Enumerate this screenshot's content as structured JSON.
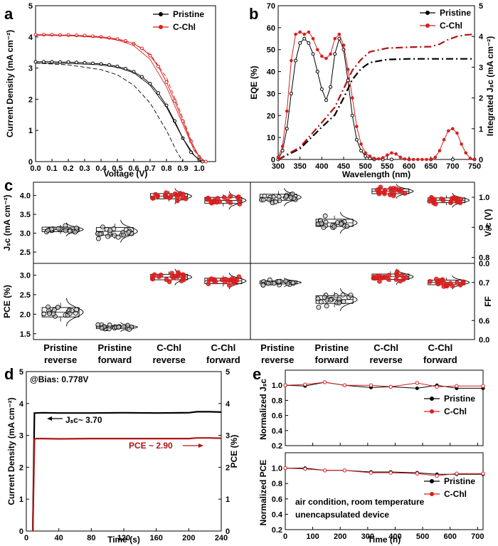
{
  "colors": {
    "pristine": "#000000",
    "cchl": "#d81e1e",
    "cchl_dark": "#b01414"
  },
  "legend": {
    "pristine": "Pristine",
    "cchl": "C-Chl"
  },
  "chart_data": [
    {
      "panel": "a",
      "type": "line",
      "xlabel": "Voltage (V)",
      "ylabel": "Current Density (mA cm⁻²)",
      "xlim": [
        0,
        1.1
      ],
      "ylim": [
        0,
        5
      ],
      "xticks": [
        "0.0",
        "0.1",
        "0.2",
        "0.3",
        "0.4",
        "0.5",
        "0.6",
        "0.7",
        "0.8",
        "0.9",
        "1.0"
      ],
      "yticks": [
        "0",
        "1",
        "2",
        "3",
        "4",
        "5"
      ],
      "series": [
        {
          "name": "Pristine",
          "style": "markers",
          "x": [
            0,
            0.05,
            0.1,
            0.15,
            0.2,
            0.25,
            0.3,
            0.35,
            0.4,
            0.45,
            0.5,
            0.55,
            0.6,
            0.65,
            0.7,
            0.75,
            0.8,
            0.85,
            0.9,
            0.95,
            1.0,
            1.02
          ],
          "y": [
            3.2,
            3.2,
            3.2,
            3.19,
            3.19,
            3.18,
            3.17,
            3.15,
            3.13,
            3.1,
            3.05,
            2.98,
            2.88,
            2.72,
            2.5,
            2.2,
            1.8,
            1.3,
            0.75,
            0.3,
            0.05,
            0.0
          ]
        },
        {
          "name": "C-Chl",
          "style": "markers",
          "x": [
            0,
            0.05,
            0.1,
            0.15,
            0.2,
            0.25,
            0.3,
            0.35,
            0.4,
            0.45,
            0.5,
            0.55,
            0.6,
            0.65,
            0.7,
            0.75,
            0.8,
            0.85,
            0.9,
            0.95,
            1.0,
            1.04
          ],
          "y": [
            4.07,
            4.07,
            4.07,
            4.06,
            4.06,
            4.05,
            4.04,
            4.02,
            4.0,
            3.97,
            3.93,
            3.87,
            3.78,
            3.63,
            3.4,
            3.05,
            2.55,
            1.95,
            1.3,
            0.65,
            0.15,
            0.0
          ]
        },
        {
          "name": "Pristine reverse sweep",
          "style": "solid",
          "x": [
            0,
            0.2,
            0.4,
            0.5,
            0.6,
            0.7,
            0.8,
            0.9,
            0.97,
            1.01
          ],
          "y": [
            3.16,
            3.15,
            3.1,
            3.02,
            2.85,
            2.45,
            1.75,
            0.75,
            0.2,
            0.0
          ]
        },
        {
          "name": "Pristine forward sweep",
          "style": "dashed",
          "x": [
            0,
            0.2,
            0.4,
            0.5,
            0.6,
            0.7,
            0.8,
            0.86,
            0.9
          ],
          "y": [
            3.16,
            3.1,
            2.95,
            2.78,
            2.45,
            1.88,
            1.0,
            0.35,
            0.0
          ]
        },
        {
          "name": "C-Chl reverse sweep",
          "style": "solid",
          "x": [
            0,
            0.2,
            0.4,
            0.5,
            0.6,
            0.7,
            0.8,
            0.9,
            0.97,
            1.03
          ],
          "y": [
            4.05,
            4.04,
            3.98,
            3.9,
            3.72,
            3.28,
            2.4,
            1.2,
            0.35,
            0.0
          ]
        },
        {
          "name": "C-Chl forward sweep",
          "style": "dashed",
          "x": [
            0,
            0.2,
            0.4,
            0.5,
            0.6,
            0.7,
            0.8,
            0.9,
            0.97,
            1.02
          ],
          "y": [
            4.05,
            4.04,
            3.99,
            3.92,
            3.78,
            3.45,
            2.7,
            1.4,
            0.4,
            0.0
          ]
        }
      ]
    },
    {
      "panel": "b",
      "type": "line",
      "xlabel": "Wavelength (nm)",
      "ylabel": "EQE (%)",
      "ylabel_right": "Integrated Jₛᴄ (mA cm⁻²)",
      "xlim": [
        300,
        750
      ],
      "ylim": [
        0,
        70
      ],
      "ylim_right": [
        0,
        5
      ],
      "xticks": [
        "300",
        "350",
        "400",
        "450",
        "500",
        "550",
        "600",
        "650",
        "700",
        "750"
      ],
      "yticks": [
        "0",
        "10",
        "20",
        "30",
        "40",
        "50",
        "60",
        "70"
      ],
      "yticks_right": [
        "0",
        "1",
        "2",
        "3",
        "4",
        "5"
      ],
      "series": [
        {
          "name": "Pristine EQE",
          "axis": "left",
          "x": [
            300,
            310,
            320,
            330,
            340,
            350,
            360,
            370,
            380,
            390,
            400,
            410,
            420,
            430,
            440,
            450,
            460,
            470,
            480,
            490,
            500,
            510,
            520,
            540,
            560,
            600,
            650,
            700,
            750
          ],
          "y": [
            0,
            4,
            14,
            30,
            45,
            53,
            55,
            53,
            48,
            40,
            32,
            27,
            33,
            48,
            55,
            50,
            36,
            20,
            9,
            4,
            1.5,
            0.5,
            0,
            0,
            0,
            0,
            0,
            0,
            0
          ]
        },
        {
          "name": "C-Chl EQE",
          "axis": "left",
          "x": [
            300,
            310,
            320,
            330,
            340,
            350,
            360,
            370,
            380,
            390,
            400,
            410,
            420,
            430,
            440,
            450,
            460,
            470,
            480,
            490,
            500,
            510,
            520,
            530,
            540,
            550,
            560,
            570,
            580,
            590,
            600,
            610,
            620,
            630,
            640,
            650,
            660,
            670,
            680,
            690,
            700,
            710,
            720,
            730,
            740,
            750
          ],
          "y": [
            1,
            6,
            22,
            45,
            57,
            58,
            57,
            58,
            55,
            50,
            47,
            46,
            48,
            55,
            57,
            52,
            41,
            28,
            15,
            7,
            3,
            1.5,
            0.5,
            0.3,
            0.8,
            2,
            3,
            2.5,
            1,
            0.2,
            0,
            0,
            0,
            0,
            0,
            0,
            1,
            4,
            9,
            13,
            14,
            12,
            7,
            3,
            0.5,
            0
          ]
        },
        {
          "name": "Pristine integrated Jₛᴄ",
          "axis": "right",
          "x": [
            300,
            350,
            400,
            430,
            450,
            470,
            490,
            510,
            550,
            600,
            650,
            700,
            750
          ],
          "y": [
            0,
            0.35,
            1.05,
            1.45,
            2.0,
            2.6,
            2.95,
            3.15,
            3.25,
            3.27,
            3.27,
            3.27,
            3.27
          ]
        },
        {
          "name": "C-Chl integrated Jₛᴄ",
          "axis": "right",
          "x": [
            300,
            350,
            400,
            430,
            450,
            470,
            490,
            510,
            550,
            600,
            650,
            670,
            690,
            710,
            730,
            750
          ],
          "y": [
            0,
            0.4,
            1.2,
            1.7,
            2.3,
            2.9,
            3.25,
            3.5,
            3.62,
            3.65,
            3.67,
            3.75,
            3.9,
            4.0,
            4.05,
            4.07
          ]
        }
      ]
    },
    {
      "panel": "c",
      "type": "scatter",
      "subtype": "box-distribution",
      "categories": [
        "Pristine\nreverse",
        "Pristine\nforward",
        "C-Chl\nreverse",
        "C-Chl\nforward"
      ],
      "category_labels": [
        [
          "Pristine",
          "reverse"
        ],
        [
          "Pristine",
          "forward"
        ],
        [
          "C-Chl",
          "reverse"
        ],
        [
          "C-Chl",
          "forward"
        ]
      ],
      "subplots": [
        {
          "name": "Jsc",
          "ylabel": "Jₛᴄ (mA cm⁻²)",
          "ylim": [
            2.2,
            4.35
          ],
          "yticks": [
            "2.5",
            "3.0",
            "3.5",
            "4.0"
          ],
          "means": [
            3.1,
            3.05,
            3.98,
            3.87
          ],
          "spread": [
            0.06,
            0.1,
            0.07,
            0.08
          ]
        },
        {
          "name": "Voc",
          "ylabel": "Vₒᴄ (V)",
          "ylim": [
            0.78,
            1.05
          ],
          "yticks": [
            "0.8",
            "0.9",
            "1.0"
          ],
          "means": [
            1.0,
            0.915,
            1.02,
            0.99
          ],
          "spread": [
            0.01,
            0.012,
            0.008,
            0.008
          ]
        },
        {
          "name": "PCE",
          "ylabel": "PCE (%)",
          "ylim": [
            1.35,
            3.3
          ],
          "yticks": [
            "1.5",
            "2.0",
            "2.5",
            "3.0"
          ],
          "means": [
            2.05,
            1.67,
            2.95,
            2.85
          ],
          "spread": [
            0.12,
            0.04,
            0.07,
            0.07
          ]
        },
        {
          "name": "FF",
          "ylabel": "FF",
          "ylim": [
            0.55,
            0.75
          ],
          "yticks": [
            "0.6",
            "0.7"
          ],
          "means": [
            0.7,
            0.655,
            0.715,
            0.7
          ],
          "spread": [
            0.004,
            0.01,
            0.007,
            0.006
          ]
        }
      ],
      "right_axis_zero": "0.0"
    },
    {
      "panel": "d",
      "type": "line",
      "xlabel": "Time (s)",
      "ylabel": "Current Density (mA cm⁻²)",
      "ylabel_right": "PCE (%)",
      "xlim": [
        0,
        240
      ],
      "ylim": [
        0,
        5
      ],
      "xticks": [
        "0",
        "40",
        "80",
        "120",
        "160",
        "200",
        "240"
      ],
      "yticks": [
        "0",
        "1",
        "2",
        "3",
        "4",
        "5"
      ],
      "annotation_bias": "@Bias: 0.778V",
      "annotation_jsc": "Jₛᴄ~ 3.70",
      "annotation_pce": "PCE ~ 2.90",
      "series": [
        {
          "name": "Jsc",
          "x": [
            8,
            10,
            12,
            20,
            40,
            80,
            120,
            160,
            200,
            210,
            225,
            240
          ],
          "y": [
            0,
            3.7,
            3.7,
            3.71,
            3.7,
            3.7,
            3.71,
            3.7,
            3.71,
            3.74,
            3.74,
            3.73
          ]
        },
        {
          "name": "PCE",
          "x": [
            8,
            10,
            12,
            20,
            40,
            80,
            120,
            160,
            200,
            210,
            225,
            240
          ],
          "y": [
            0,
            2.88,
            2.9,
            2.9,
            2.89,
            2.9,
            2.9,
            2.9,
            2.9,
            2.92,
            2.92,
            2.91
          ]
        }
      ]
    },
    {
      "panel": "e",
      "type": "line",
      "xlabel": "Time (h)",
      "xlim": [
        0,
        720
      ],
      "xticks": [
        "0",
        "100",
        "200",
        "300",
        "400",
        "500",
        "600",
        "700"
      ],
      "subplots": [
        {
          "name": "Jsc",
          "ylabel": "Normalized Jₛᴄ",
          "ylim": [
            0.2,
            1.2
          ],
          "yticks": [
            "0.2",
            "0.4",
            "0.6",
            "0.8",
            "1.0"
          ],
          "x": [
            0,
            72,
            144,
            216,
            312,
            384,
            480,
            552,
            624,
            720
          ],
          "pristine": [
            1.0,
            0.99,
            1.04,
            1.0,
            0.97,
            0.98,
            0.96,
            1.0,
            0.96,
            0.96
          ],
          "cchl": [
            1.0,
            1.01,
            1.04,
            1.0,
            1.0,
            0.98,
            1.03,
            0.98,
            0.99,
            0.99
          ]
        },
        {
          "name": "PCE",
          "ylabel": "Normalized PCE",
          "ylim": [
            0.2,
            1.2
          ],
          "yticks": [
            "0.2",
            "0.4",
            "0.6",
            "0.8",
            "1.0"
          ],
          "x": [
            0,
            72,
            144,
            216,
            312,
            384,
            480,
            552,
            624,
            720
          ],
          "pristine": [
            1.0,
            1.0,
            0.97,
            0.97,
            0.95,
            0.95,
            0.94,
            0.92,
            0.92,
            0.92
          ],
          "cchl": [
            1.0,
            0.99,
            0.97,
            0.97,
            0.94,
            0.94,
            0.93,
            0.9,
            0.93,
            0.93
          ]
        }
      ],
      "annotation_line1": "air condition, room temperature",
      "annotation_line2": "unencapsulated device"
    }
  ],
  "panel_labels": [
    "a",
    "b",
    "c",
    "d",
    "e"
  ]
}
